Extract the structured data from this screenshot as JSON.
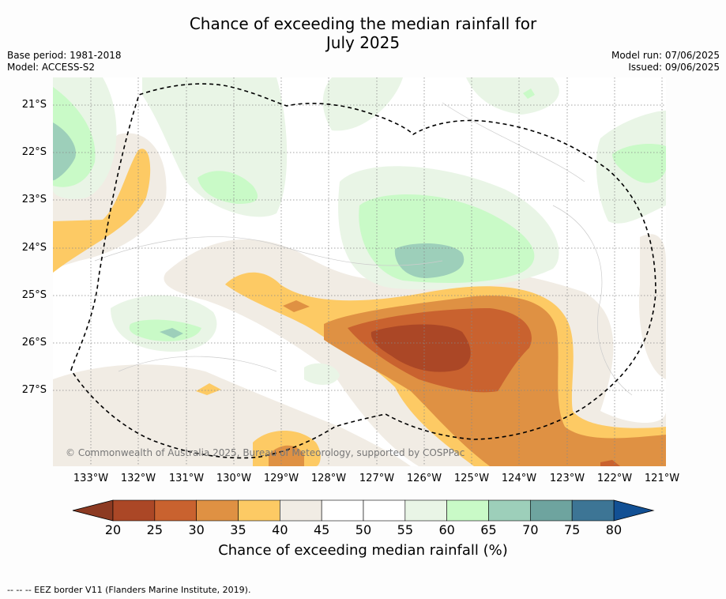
{
  "header": {
    "title_line1": "Chance of exceeding the median rainfall for",
    "title_line2": "July 2025",
    "base_period": "Base period: 1981-2018",
    "model": "Model: ACCESS-S2",
    "model_run": "Model run: 07/06/2025",
    "issued": "Issued: 09/06/2025"
  },
  "map": {
    "copyright": "© Commonwealth of Australia 2025, Bureau of Meteorology, supported by COSPPac",
    "lat_labels": [
      "21°S",
      "22°S",
      "23°S",
      "24°S",
      "25°S",
      "26°S",
      "27°S"
    ],
    "lon_labels": [
      "133°W",
      "132°W",
      "131°W",
      "130°W",
      "129°W",
      "128°W",
      "127°W",
      "126°W",
      "125°W",
      "124°W",
      "123°W",
      "122°W",
      "121°W"
    ]
  },
  "colorbar": {
    "label": "Chance of exceeding median rainfall (%)",
    "ticks": [
      "20",
      "25",
      "30",
      "35",
      "40",
      "45",
      "50",
      "55",
      "60",
      "65",
      "70",
      "75",
      "80"
    ],
    "colors": [
      "#8c3a22",
      "#ab4726",
      "#c9622f",
      "#df9143",
      "#fdca64",
      "#f1ece4",
      "#ffffff",
      "#ffffff",
      "#e9f5e6",
      "#c9fac7",
      "#9dcfba",
      "#6ea49f",
      "#3d7595",
      "#125094"
    ]
  },
  "footer": {
    "legend": "--  --  -- EEZ border V11 (Flanders Marine Institute, 2019)."
  }
}
